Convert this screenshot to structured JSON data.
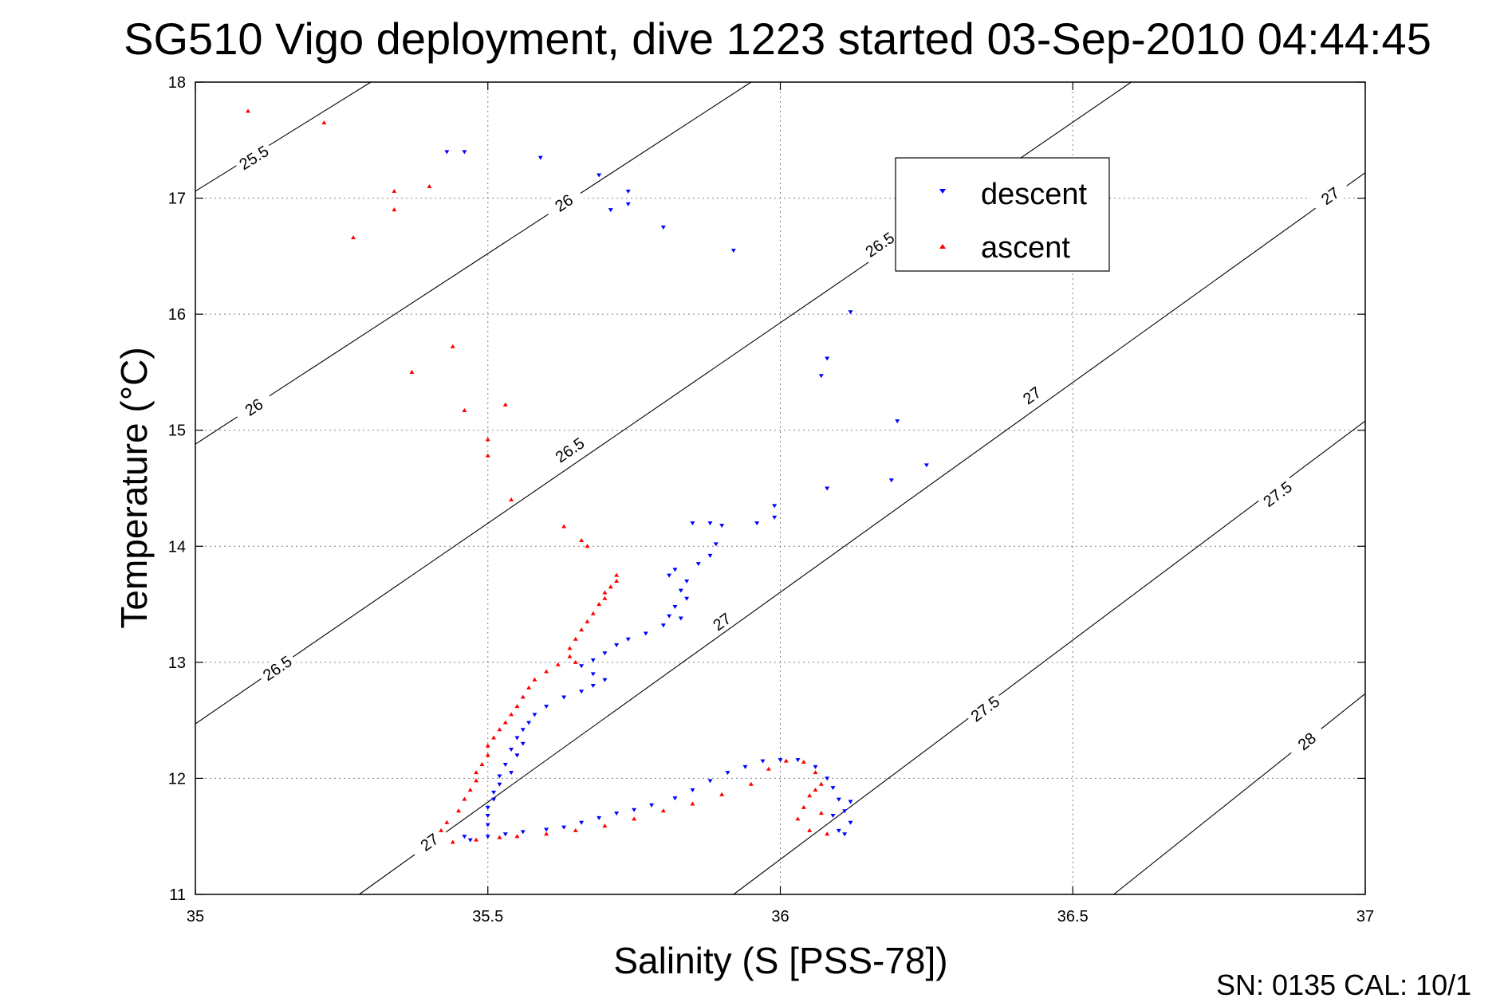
{
  "chart_data": {
    "type": "scatter",
    "title": "SG510 Vigo deployment, dive 1223 started 03-Sep-2010 04:44:45",
    "xlabel": "Salinity (S [PSS-78])",
    "ylabel": "Temperature (°C)",
    "xlim": [
      35,
      37
    ],
    "ylim": [
      11,
      18
    ],
    "x_ticks": [
      35,
      35.5,
      36,
      36.5,
      37
    ],
    "x_tick_labels": [
      "35",
      "35.5",
      "36",
      "36.5",
      "37"
    ],
    "y_ticks": [
      11,
      12,
      13,
      14,
      15,
      16,
      17,
      18
    ],
    "y_tick_labels": [
      "11",
      "12",
      "13",
      "14",
      "15",
      "16",
      "17",
      "18"
    ],
    "grid": true,
    "legend_position": "top-right",
    "footer": "SN: 0135  CAL: 10/1",
    "density_contours": [
      {
        "label": "25.5",
        "points": [
          [
            35,
            17.06
          ],
          [
            35.3,
            18
          ]
        ],
        "labels_at": [
          [
            35.1,
            17.35
          ]
        ]
      },
      {
        "label": "26",
        "points": [
          [
            35,
            14.88
          ],
          [
            35.95,
            18
          ]
        ],
        "labels_at": [
          [
            35.1,
            15.2
          ],
          [
            35.63,
            16.96
          ]
        ]
      },
      {
        "label": "26.5",
        "points": [
          [
            35,
            12.47
          ],
          [
            36.6,
            18
          ]
        ],
        "labels_at": [
          [
            35.14,
            12.95
          ],
          [
            35.64,
            14.83
          ],
          [
            36.17,
            16.6
          ]
        ]
      },
      {
        "label": "27",
        "points": [
          [
            35.28,
            11
          ],
          [
            37,
            17.22
          ]
        ],
        "labels_at": [
          [
            35.4,
            11.45
          ],
          [
            35.9,
            13.35
          ],
          [
            36.43,
            15.3
          ],
          [
            36.94,
            17.02
          ]
        ]
      },
      {
        "label": "27.5",
        "points": [
          [
            35.92,
            11
          ],
          [
            37,
            15.08
          ]
        ],
        "labels_at": [
          [
            36.35,
            12.6
          ],
          [
            36.85,
            14.45
          ]
        ]
      },
      {
        "label": "28",
        "points": [
          [
            36.57,
            11
          ],
          [
            37,
            12.73
          ]
        ],
        "labels_at": [
          [
            36.9,
            12.32
          ]
        ]
      }
    ],
    "series": [
      {
        "name": "descent",
        "color": "#0000ff",
        "marker": "triangle-down",
        "points": [
          [
            35.43,
            17.4
          ],
          [
            35.46,
            17.4
          ],
          [
            35.59,
            17.35
          ],
          [
            35.69,
            17.2
          ],
          [
            35.74,
            17.06
          ],
          [
            35.71,
            16.9
          ],
          [
            35.74,
            16.95
          ],
          [
            35.8,
            16.75
          ],
          [
            35.92,
            16.55
          ],
          [
            36.12,
            16.02
          ],
          [
            36.08,
            15.62
          ],
          [
            36.07,
            15.47
          ],
          [
            36.2,
            15.08
          ],
          [
            36.25,
            14.7
          ],
          [
            36.19,
            14.57
          ],
          [
            36.08,
            14.5
          ],
          [
            35.99,
            14.35
          ],
          [
            35.99,
            14.25
          ],
          [
            35.96,
            14.2
          ],
          [
            35.88,
            14.2
          ],
          [
            35.85,
            14.2
          ],
          [
            35.9,
            14.18
          ],
          [
            35.89,
            14.02
          ],
          [
            35.88,
            13.92
          ],
          [
            35.86,
            13.85
          ],
          [
            35.82,
            13.8
          ],
          [
            35.81,
            13.75
          ],
          [
            35.84,
            13.7
          ],
          [
            35.83,
            13.62
          ],
          [
            35.84,
            13.55
          ],
          [
            35.82,
            13.48
          ],
          [
            35.81,
            13.4
          ],
          [
            35.83,
            13.38
          ],
          [
            35.8,
            13.32
          ],
          [
            35.77,
            13.25
          ],
          [
            35.74,
            13.2
          ],
          [
            35.72,
            13.15
          ],
          [
            35.7,
            13.08
          ],
          [
            35.68,
            13.02
          ],
          [
            35.66,
            12.97
          ],
          [
            35.68,
            12.9
          ],
          [
            35.7,
            12.85
          ],
          [
            35.68,
            12.8
          ],
          [
            35.66,
            12.75
          ],
          [
            35.63,
            12.7
          ],
          [
            35.6,
            12.62
          ],
          [
            35.58,
            12.55
          ],
          [
            35.57,
            12.48
          ],
          [
            35.56,
            12.42
          ],
          [
            35.55,
            12.35
          ],
          [
            35.56,
            12.3
          ],
          [
            35.54,
            12.25
          ],
          [
            35.55,
            12.2
          ],
          [
            35.53,
            12.12
          ],
          [
            35.54,
            12.05
          ],
          [
            35.52,
            12.02
          ],
          [
            35.52,
            11.95
          ],
          [
            35.51,
            11.88
          ],
          [
            35.51,
            11.82
          ],
          [
            35.5,
            11.75
          ],
          [
            35.5,
            11.68
          ],
          [
            35.5,
            11.6
          ],
          [
            35.46,
            11.5
          ],
          [
            35.47,
            11.47
          ],
          [
            35.5,
            11.5
          ],
          [
            35.53,
            11.52
          ],
          [
            35.56,
            11.54
          ],
          [
            35.6,
            11.56
          ],
          [
            35.63,
            11.58
          ],
          [
            35.66,
            11.62
          ],
          [
            35.69,
            11.66
          ],
          [
            35.72,
            11.7
          ],
          [
            35.75,
            11.73
          ],
          [
            35.78,
            11.77
          ],
          [
            35.82,
            11.83
          ],
          [
            35.85,
            11.9
          ],
          [
            35.88,
            11.98
          ],
          [
            35.91,
            12.05
          ],
          [
            35.94,
            12.1
          ],
          [
            35.97,
            12.15
          ],
          [
            36.0,
            12.16
          ],
          [
            36.03,
            12.16
          ],
          [
            36.06,
            12.1
          ],
          [
            36.08,
            12.0
          ],
          [
            36.09,
            11.92
          ],
          [
            36.1,
            11.82
          ],
          [
            36.11,
            11.72
          ],
          [
            36.12,
            11.62
          ],
          [
            36.11,
            11.52
          ],
          [
            36.12,
            11.8
          ],
          [
            36.09,
            11.68
          ],
          [
            36.1,
            11.55
          ]
        ]
      },
      {
        "name": "ascent",
        "color": "#ff0000",
        "marker": "triangle-up",
        "points": [
          [
            35.09,
            17.75
          ],
          [
            35.22,
            17.65
          ],
          [
            35.34,
            17.06
          ],
          [
            35.4,
            17.1
          ],
          [
            35.34,
            16.9
          ],
          [
            35.27,
            16.66
          ],
          [
            35.44,
            15.72
          ],
          [
            35.37,
            15.5
          ],
          [
            35.46,
            15.17
          ],
          [
            35.53,
            15.22
          ],
          [
            35.5,
            14.92
          ],
          [
            35.5,
            14.78
          ],
          [
            35.54,
            14.4
          ],
          [
            35.63,
            14.17
          ],
          [
            35.66,
            14.05
          ],
          [
            35.67,
            14.0
          ],
          [
            35.72,
            13.75
          ],
          [
            35.72,
            13.7
          ],
          [
            35.71,
            13.65
          ],
          [
            35.7,
            13.6
          ],
          [
            35.7,
            13.55
          ],
          [
            35.69,
            13.5
          ],
          [
            35.68,
            13.42
          ],
          [
            35.67,
            13.35
          ],
          [
            35.66,
            13.28
          ],
          [
            35.65,
            13.2
          ],
          [
            35.64,
            13.12
          ],
          [
            35.64,
            13.05
          ],
          [
            35.65,
            13.0
          ],
          [
            35.62,
            12.98
          ],
          [
            35.6,
            12.92
          ],
          [
            35.58,
            12.85
          ],
          [
            35.57,
            12.78
          ],
          [
            35.56,
            12.7
          ],
          [
            35.55,
            12.62
          ],
          [
            35.54,
            12.55
          ],
          [
            35.53,
            12.48
          ],
          [
            35.52,
            12.42
          ],
          [
            35.51,
            12.35
          ],
          [
            35.5,
            12.28
          ],
          [
            35.5,
            12.2
          ],
          [
            35.49,
            12.12
          ],
          [
            35.48,
            12.05
          ],
          [
            35.48,
            11.98
          ],
          [
            35.47,
            11.9
          ],
          [
            35.46,
            11.82
          ],
          [
            35.45,
            11.72
          ],
          [
            35.43,
            11.62
          ],
          [
            35.42,
            11.55
          ],
          [
            35.44,
            11.45
          ],
          [
            35.48,
            11.47
          ],
          [
            35.52,
            11.49
          ],
          [
            35.55,
            11.5
          ],
          [
            35.6,
            11.52
          ],
          [
            35.65,
            11.55
          ],
          [
            35.7,
            11.59
          ],
          [
            35.75,
            11.65
          ],
          [
            35.8,
            11.72
          ],
          [
            35.85,
            11.78
          ],
          [
            35.9,
            11.86
          ],
          [
            35.95,
            11.95
          ],
          [
            35.98,
            12.08
          ],
          [
            36.01,
            12.15
          ],
          [
            36.04,
            12.14
          ],
          [
            36.06,
            12.05
          ],
          [
            36.07,
            11.95
          ],
          [
            36.05,
            11.85
          ],
          [
            36.04,
            11.75
          ],
          [
            36.03,
            11.65
          ],
          [
            36.05,
            11.55
          ],
          [
            36.08,
            11.52
          ],
          [
            36.07,
            11.7
          ],
          [
            36.06,
            11.9
          ]
        ]
      }
    ]
  }
}
